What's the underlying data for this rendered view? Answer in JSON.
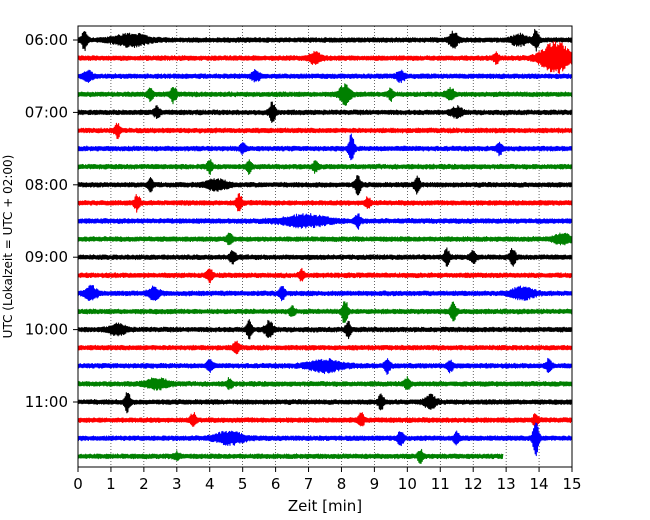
{
  "chart_data": {
    "type": "line",
    "title": "",
    "xlabel": "Zeit  [min]",
    "ylabel": "UTC (Lokalzeit = UTC + 02:00)",
    "xlim": [
      0,
      15
    ],
    "x_ticks": [
      0,
      1,
      2,
      3,
      4,
      5,
      6,
      7,
      8,
      9,
      10,
      11,
      12,
      13,
      14,
      15
    ],
    "x_tick_labels": [
      "0",
      "1",
      "2",
      "3",
      "4",
      "5",
      "6",
      "7",
      "8",
      "9",
      "10",
      "11",
      "12",
      "13",
      "14",
      "15"
    ],
    "y_tick_labels": [
      "06:00",
      "07:00",
      "08:00",
      "09:00",
      "10:00",
      "11:00"
    ],
    "grid": "vertical dotted lines at each minute",
    "row_interval_min": 15,
    "start_time": "06:00",
    "color_cycle": [
      "#000000",
      "#ff0000",
      "#0000ff",
      "#008000"
    ],
    "series": [
      {
        "time": "06:00",
        "color": "#000000",
        "x_end": 15,
        "events": [
          {
            "x": 0.2,
            "amp": 1.0,
            "dur": 0.1
          },
          {
            "x": 1.6,
            "amp": 0.6,
            "dur": 0.6
          },
          {
            "x": 11.4,
            "amp": 0.9,
            "dur": 0.15
          },
          {
            "x": 13.9,
            "amp": 1.1,
            "dur": 0.1
          },
          {
            "x": 13.4,
            "amp": 0.5,
            "dur": 0.3
          }
        ]
      },
      {
        "time": "06:15",
        "color": "#ff0000",
        "x_end": 15,
        "events": [
          {
            "x": 7.2,
            "amp": 0.6,
            "dur": 0.2
          },
          {
            "x": 12.7,
            "amp": 0.5,
            "dur": 0.1
          },
          {
            "x": 14.5,
            "amp": 1.7,
            "dur": 0.5
          }
        ]
      },
      {
        "time": "06:30",
        "color": "#0000ff",
        "x_end": 15,
        "events": [
          {
            "x": 0.3,
            "amp": 0.5,
            "dur": 0.15
          },
          {
            "x": 5.4,
            "amp": 0.5,
            "dur": 0.15
          },
          {
            "x": 9.8,
            "amp": 0.5,
            "dur": 0.15
          }
        ]
      },
      {
        "time": "06:45",
        "color": "#008000",
        "x_end": 15,
        "events": [
          {
            "x": 2.2,
            "amp": 0.7,
            "dur": 0.1
          },
          {
            "x": 2.9,
            "amp": 0.8,
            "dur": 0.1
          },
          {
            "x": 8.1,
            "amp": 1.0,
            "dur": 0.2
          },
          {
            "x": 9.5,
            "amp": 0.6,
            "dur": 0.1
          },
          {
            "x": 11.3,
            "amp": 0.6,
            "dur": 0.15
          }
        ]
      },
      {
        "time": "07:00",
        "color": "#000000",
        "x_end": 15,
        "events": [
          {
            "x": 2.4,
            "amp": 0.6,
            "dur": 0.1
          },
          {
            "x": 5.9,
            "amp": 1.1,
            "dur": 0.1
          },
          {
            "x": 11.5,
            "amp": 0.5,
            "dur": 0.2
          }
        ]
      },
      {
        "time": "07:15",
        "color": "#ff0000",
        "x_end": 15,
        "events": [
          {
            "x": 1.2,
            "amp": 0.7,
            "dur": 0.1
          }
        ]
      },
      {
        "time": "07:30",
        "color": "#0000ff",
        "x_end": 15,
        "events": [
          {
            "x": 5.0,
            "amp": 0.5,
            "dur": 0.1
          },
          {
            "x": 8.3,
            "amp": 1.4,
            "dur": 0.1
          },
          {
            "x": 12.8,
            "amp": 0.6,
            "dur": 0.1
          }
        ]
      },
      {
        "time": "07:45",
        "color": "#008000",
        "x_end": 15,
        "events": [
          {
            "x": 4.0,
            "amp": 0.6,
            "dur": 0.1
          },
          {
            "x": 5.2,
            "amp": 0.7,
            "dur": 0.1
          },
          {
            "x": 7.2,
            "amp": 0.5,
            "dur": 0.1
          }
        ]
      },
      {
        "time": "08:00",
        "color": "#000000",
        "x_end": 15,
        "events": [
          {
            "x": 2.2,
            "amp": 0.7,
            "dur": 0.1
          },
          {
            "x": 4.2,
            "amp": 0.5,
            "dur": 0.4
          },
          {
            "x": 8.5,
            "amp": 1.0,
            "dur": 0.1
          },
          {
            "x": 10.3,
            "amp": 1.0,
            "dur": 0.1
          }
        ]
      },
      {
        "time": "08:15",
        "color": "#ff0000",
        "x_end": 15,
        "events": [
          {
            "x": 1.8,
            "amp": 0.8,
            "dur": 0.1
          },
          {
            "x": 4.9,
            "amp": 0.9,
            "dur": 0.1
          },
          {
            "x": 8.8,
            "amp": 0.5,
            "dur": 0.1
          }
        ]
      },
      {
        "time": "08:30",
        "color": "#0000ff",
        "x_end": 15,
        "events": [
          {
            "x": 6.9,
            "amp": 0.6,
            "dur": 0.8
          },
          {
            "x": 8.5,
            "amp": 0.7,
            "dur": 0.1
          }
        ]
      },
      {
        "time": "08:45",
        "color": "#008000",
        "x_end": 15,
        "events": [
          {
            "x": 4.6,
            "amp": 0.6,
            "dur": 0.1
          },
          {
            "x": 14.7,
            "amp": 0.5,
            "dur": 0.3
          }
        ]
      },
      {
        "time": "09:00",
        "color": "#000000",
        "x_end": 15,
        "events": [
          {
            "x": 4.7,
            "amp": 0.7,
            "dur": 0.1
          },
          {
            "x": 11.2,
            "amp": 0.8,
            "dur": 0.1
          },
          {
            "x": 12.0,
            "amp": 0.7,
            "dur": 0.1
          },
          {
            "x": 13.2,
            "amp": 0.9,
            "dur": 0.1
          }
        ]
      },
      {
        "time": "09:15",
        "color": "#ff0000",
        "x_end": 15,
        "events": [
          {
            "x": 4.0,
            "amp": 0.7,
            "dur": 0.1
          },
          {
            "x": 6.8,
            "amp": 0.5,
            "dur": 0.1
          }
        ]
      },
      {
        "time": "09:30",
        "color": "#0000ff",
        "x_end": 15,
        "events": [
          {
            "x": 0.4,
            "amp": 0.7,
            "dur": 0.2
          },
          {
            "x": 2.3,
            "amp": 0.6,
            "dur": 0.2
          },
          {
            "x": 6.2,
            "amp": 0.7,
            "dur": 0.1
          },
          {
            "x": 13.5,
            "amp": 0.6,
            "dur": 0.4
          }
        ]
      },
      {
        "time": "09:45",
        "color": "#008000",
        "x_end": 15,
        "events": [
          {
            "x": 8.1,
            "amp": 1.3,
            "dur": 0.1
          },
          {
            "x": 11.4,
            "amp": 1.0,
            "dur": 0.1
          },
          {
            "x": 6.5,
            "amp": 0.5,
            "dur": 0.1
          }
        ]
      },
      {
        "time": "10:00",
        "color": "#000000",
        "x_end": 15,
        "events": [
          {
            "x": 1.2,
            "amp": 0.5,
            "dur": 0.3
          },
          {
            "x": 5.2,
            "amp": 0.9,
            "dur": 0.1
          },
          {
            "x": 5.8,
            "amp": 0.8,
            "dur": 0.15
          },
          {
            "x": 8.2,
            "amp": 0.8,
            "dur": 0.1
          }
        ]
      },
      {
        "time": "10:15",
        "color": "#ff0000",
        "x_end": 15,
        "events": [
          {
            "x": 4.8,
            "amp": 0.6,
            "dur": 0.1
          }
        ]
      },
      {
        "time": "10:30",
        "color": "#0000ff",
        "x_end": 15,
        "events": [
          {
            "x": 4.0,
            "amp": 0.6,
            "dur": 0.1
          },
          {
            "x": 7.5,
            "amp": 0.6,
            "dur": 0.6
          },
          {
            "x": 9.4,
            "amp": 0.8,
            "dur": 0.1
          },
          {
            "x": 11.3,
            "amp": 0.6,
            "dur": 0.1
          },
          {
            "x": 14.3,
            "amp": 0.7,
            "dur": 0.1
          }
        ]
      },
      {
        "time": "10:45",
        "color": "#008000",
        "x_end": 15,
        "events": [
          {
            "x": 2.4,
            "amp": 0.5,
            "dur": 0.4
          },
          {
            "x": 4.6,
            "amp": 0.5,
            "dur": 0.1
          },
          {
            "x": 10.0,
            "amp": 0.6,
            "dur": 0.1
          }
        ]
      },
      {
        "time": "11:00",
        "color": "#000000",
        "x_end": 15,
        "events": [
          {
            "x": 1.5,
            "amp": 1.0,
            "dur": 0.1
          },
          {
            "x": 9.2,
            "amp": 0.8,
            "dur": 0.1
          },
          {
            "x": 10.7,
            "amp": 0.7,
            "dur": 0.2
          }
        ]
      },
      {
        "time": "11:15",
        "color": "#ff0000",
        "x_end": 15,
        "events": [
          {
            "x": 3.5,
            "amp": 0.7,
            "dur": 0.1
          },
          {
            "x": 8.6,
            "amp": 0.7,
            "dur": 0.1
          },
          {
            "x": 13.9,
            "amp": 0.6,
            "dur": 0.1
          }
        ]
      },
      {
        "time": "11:30",
        "color": "#0000ff",
        "x_end": 15,
        "events": [
          {
            "x": 4.6,
            "amp": 0.6,
            "dur": 0.5
          },
          {
            "x": 9.8,
            "amp": 0.8,
            "dur": 0.1
          },
          {
            "x": 11.5,
            "amp": 0.6,
            "dur": 0.1
          },
          {
            "x": 13.9,
            "amp": 2.0,
            "dur": 0.1
          }
        ]
      },
      {
        "time": "11:45",
        "color": "#008000",
        "x_end": 12.9,
        "events": [
          {
            "x": 10.4,
            "amp": 0.6,
            "dur": 0.1
          },
          {
            "x": 3.0,
            "amp": 0.4,
            "dur": 0.1
          }
        ]
      }
    ]
  }
}
